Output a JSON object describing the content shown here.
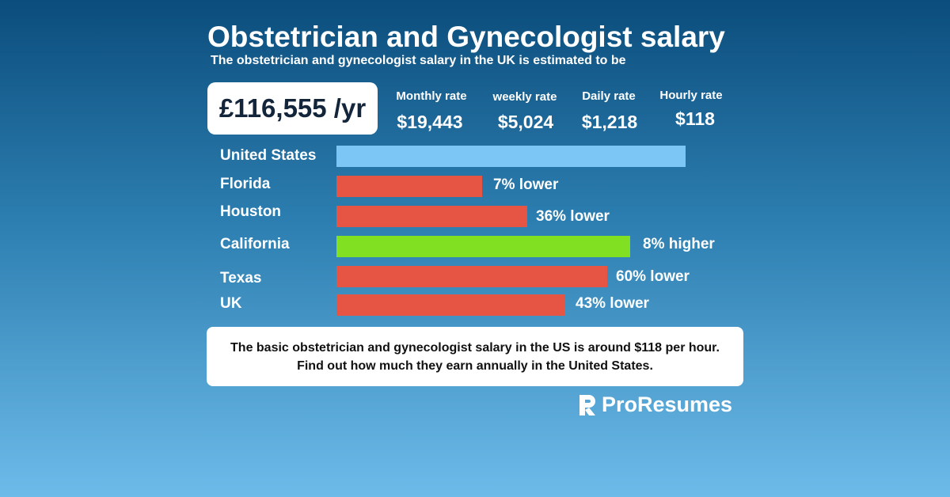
{
  "header": {
    "title": "Obstetrician and Gynecologist salary",
    "subtitle": "The obstetrician and gynecologist salary in the UK is estimated to be"
  },
  "annual": "£116,555 /yr",
  "rates": [
    {
      "label": "Monthly rate",
      "value": "$19,443"
    },
    {
      "label": "weekly rate",
      "value": "$5,024"
    },
    {
      "label": "Daily rate",
      "value": "$1,218"
    },
    {
      "label": "Hourly rate",
      "value": "$118"
    }
  ],
  "rows": [
    {
      "label": "United States"
    },
    {
      "label": "Florida",
      "note": "7% lower"
    },
    {
      "label": "Houston",
      "note": "36% lower"
    },
    {
      "label": "California",
      "note": "8% higher"
    },
    {
      "label": "Texas",
      "note": "60% lower"
    },
    {
      "label": "UK",
      "note": "43% lower"
    }
  ],
  "footer_note": "The basic obstetrician and gynecologist salary in the US is around $118 per hour. Find out how much they earn annually in the United States.",
  "brand": "ProResumes"
}
